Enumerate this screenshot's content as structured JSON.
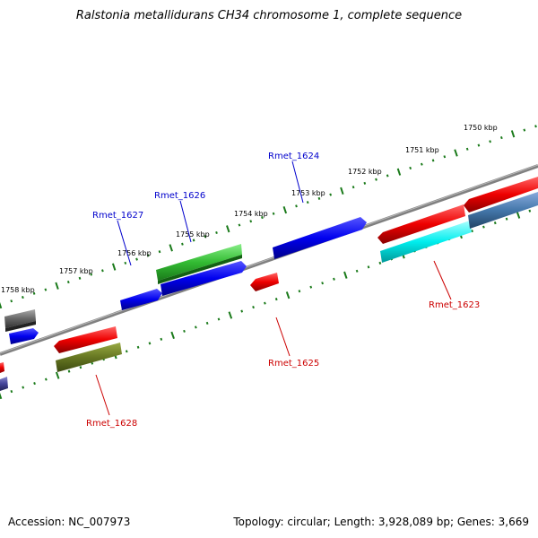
{
  "title": "Ralstonia metallidurans CH34 chromosome 1, complete sequence",
  "footer": {
    "accession": "Accession: NC_007973",
    "summary": "Topology: circular; Length: 3,928,089 bp; Genes: 3,669"
  },
  "scale_labels": [
    "1750 kbp",
    "1751 kbp",
    "1752 kbp",
    "1753 kbp",
    "1754 kbp",
    "1755 kbp",
    "1756 kbp",
    "1757 kbp",
    "1758 kbp"
  ],
  "gene_labels": {
    "forward": [
      "Rmet_1624",
      "Rmet_1626",
      "Rmet_1627"
    ],
    "reverse": [
      "Rmet_1623",
      "Rmet_1625",
      "Rmet_1628"
    ]
  },
  "colors": {
    "forward_label": "#0000cc",
    "reverse_label": "#cc0000",
    "tick": "#1a7a1a",
    "backbone": "#808080"
  }
}
